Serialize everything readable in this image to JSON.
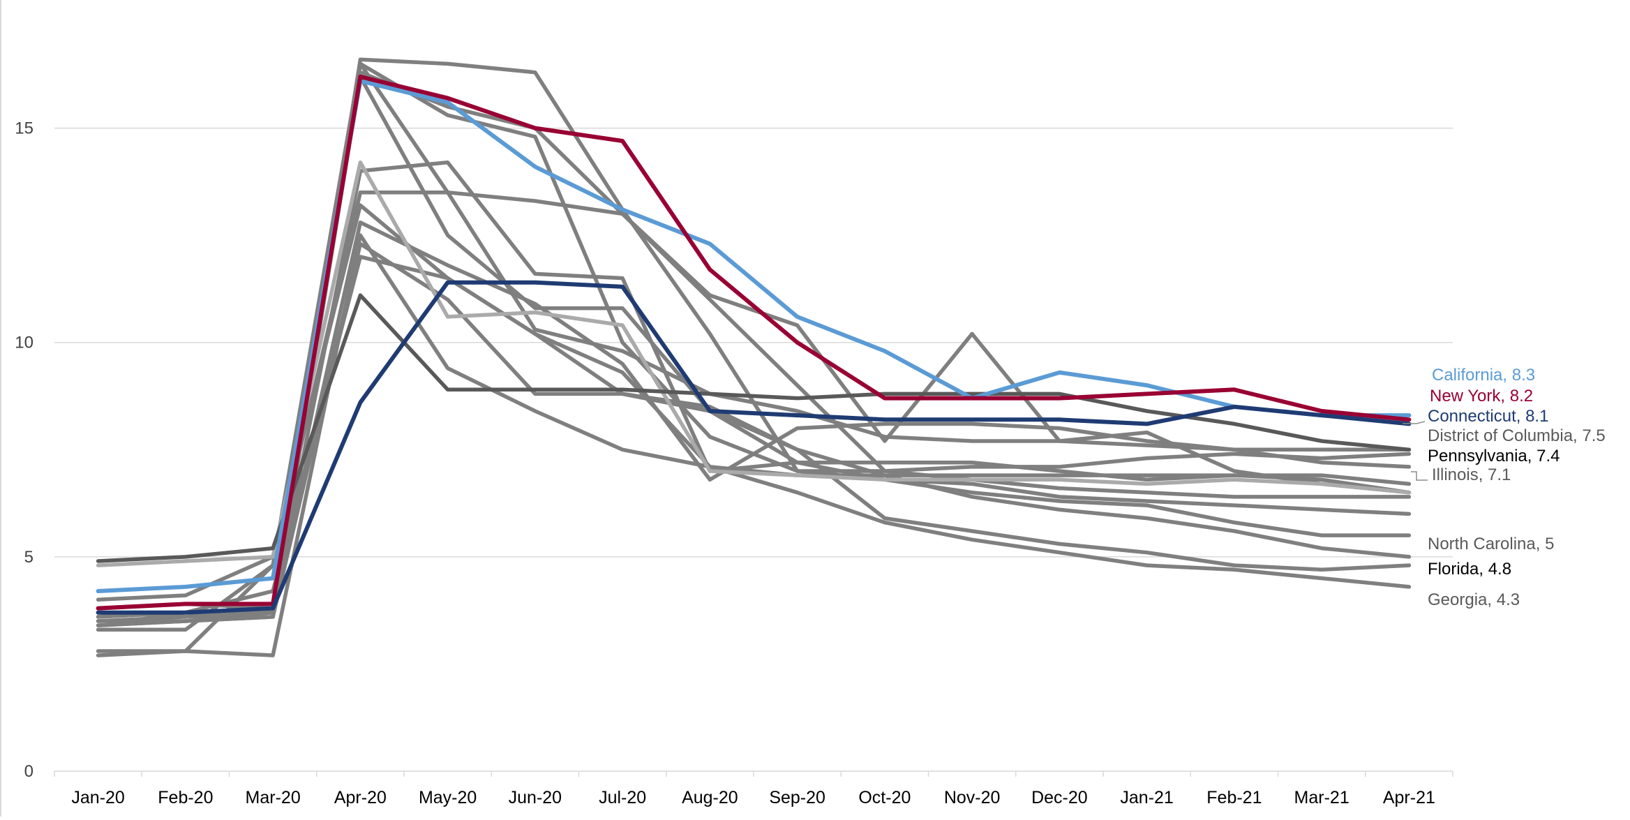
{
  "chart_data": {
    "type": "line",
    "title": "",
    "xlabel": "",
    "ylabel": "",
    "ylim": [
      0,
      17.5
    ],
    "y_ticks": [
      "0",
      "5",
      "10",
      "15"
    ],
    "grid": "horizontal",
    "legend": "none",
    "categories": [
      "Jan-20",
      "Feb-20",
      "Mar-20",
      "Apr-20",
      "May-20",
      "Jun-20",
      "Jul-20",
      "Aug-20",
      "Sep-20",
      "Oct-20",
      "Nov-20",
      "Dec-20",
      "Jan-21",
      "Feb-21",
      "Mar-21",
      "Apr-21"
    ],
    "series": [
      {
        "name": "",
        "label": "",
        "color": "#7f7f7f",
        "values": [
          3.5,
          3.5,
          3.7,
          16.6,
          16.5,
          16.3,
          13.1,
          10.2,
          7.0,
          7.0,
          7.1,
          7.1,
          7.3,
          7.4,
          7.3,
          7.4
        ]
      },
      {
        "name": "",
        "label": "",
        "color": "#7f7f7f",
        "values": [
          3.7,
          3.6,
          3.8,
          16.5,
          15.3,
          14.8,
          10.0,
          7.8,
          7.0,
          6.8,
          6.7,
          6.4,
          6.3,
          6.2,
          6.1,
          6.0
        ]
      },
      {
        "name": "",
        "label": "",
        "color": "#7f7f7f",
        "values": [
          3.3,
          3.3,
          4.8,
          16.5,
          13.5,
          10.3,
          9.8,
          8.8,
          8.4,
          7.8,
          7.7,
          7.7,
          7.6,
          7.5,
          7.2,
          7.1
        ]
      },
      {
        "name": "",
        "label": "",
        "color": "#7f7f7f",
        "values": [
          3.6,
          3.7,
          3.7,
          16.3,
          15.5,
          15.0,
          13.0,
          11.0,
          9.0,
          7.0,
          6.8,
          6.6,
          6.5,
          6.4,
          6.4,
          6.4
        ]
      },
      {
        "name": "",
        "label": "",
        "color": "#7f7f7f",
        "values": [
          3.4,
          3.5,
          3.6,
          16.2,
          12.5,
          10.8,
          10.8,
          8.4,
          7.2,
          6.8,
          6.5,
          6.3,
          6.2,
          5.8,
          5.5,
          5.5
        ]
      },
      {
        "name": "",
        "label": "",
        "color": "#7f7f7f",
        "values": [
          3.8,
          3.9,
          3.8,
          14.0,
          14.2,
          11.6,
          11.5,
          7.0,
          7.2,
          7.2,
          7.2,
          7.0,
          6.8,
          6.9,
          6.8,
          6.5
        ]
      },
      {
        "name": "",
        "label": "",
        "color": "#7f7f7f",
        "values": [
          2.8,
          2.8,
          4.8,
          13.5,
          13.5,
          13.3,
          13.0,
          11.1,
          10.4,
          7.7,
          10.2,
          7.7,
          7.9,
          7.0,
          6.7,
          6.5
        ]
      },
      {
        "name": "",
        "label": "",
        "color": "#7f7f7f",
        "values": [
          4.0,
          4.1,
          5.0,
          13.2,
          11.5,
          10.2,
          9.3,
          7.1,
          6.9,
          6.9,
          6.9,
          6.9,
          6.9,
          6.9,
          6.9,
          6.7
        ]
      },
      {
        "name": "",
        "label": "",
        "color": "#7f7f7f",
        "values": [
          3.5,
          3.6,
          3.7,
          12.8,
          11.8,
          10.9,
          9.5,
          6.8,
          8.0,
          8.1,
          8.1,
          8.0,
          7.7,
          7.5,
          7.5,
          7.5
        ]
      },
      {
        "name": "",
        "label": "",
        "color": "#7f7f7f",
        "values": [
          3.6,
          3.7,
          4.2,
          12.0,
          11.5,
          10.2,
          8.8,
          8.5,
          7.5,
          6.9,
          6.4,
          6.1,
          5.9,
          5.6,
          5.2,
          5.0
        ]
      },
      {
        "name": "",
        "label": "",
        "color": "#7f7f7f",
        "values": [
          2.7,
          2.8,
          2.7,
          12.5,
          9.4,
          8.4,
          7.5,
          7.1,
          6.5,
          5.8,
          5.4,
          5.1,
          4.8,
          4.7,
          4.5,
          4.3
        ]
      },
      {
        "name": "",
        "label": "",
        "color": "#7f7f7f",
        "values": [
          3.4,
          3.5,
          3.6,
          12.3,
          11.0,
          8.8,
          8.8,
          8.4,
          7.5,
          5.9,
          5.6,
          5.3,
          5.1,
          4.8,
          4.7,
          4.8
        ]
      },
      {
        "name": "",
        "label": "",
        "color": "#aaaaaa",
        "values": [
          4.8,
          4.9,
          5.0,
          14.2,
          10.6,
          10.7,
          10.4,
          7.0,
          6.9,
          6.8,
          6.8,
          6.8,
          6.7,
          6.8,
          6.7,
          6.5
        ]
      },
      {
        "name": "",
        "label": "",
        "color": "#595959",
        "values": [
          4.9,
          5.0,
          5.2,
          11.1,
          8.9,
          8.9,
          8.9,
          8.8,
          8.7,
          8.8,
          8.8,
          8.8,
          8.4,
          8.1,
          7.7,
          7.5
        ]
      },
      {
        "name": "",
        "label": "",
        "color": "#5b9bd5",
        "values": [
          4.2,
          4.3,
          4.5,
          16.1,
          15.6,
          14.1,
          13.1,
          12.3,
          10.6,
          9.8,
          8.7,
          9.3,
          9.0,
          8.5,
          8.3,
          8.3
        ]
      },
      {
        "name": "",
        "label": "",
        "color": "#990033",
        "values": [
          3.8,
          3.9,
          3.9,
          16.2,
          15.7,
          15.0,
          14.7,
          11.7,
          10.0,
          8.7,
          8.7,
          8.7,
          8.8,
          8.9,
          8.4,
          8.2
        ]
      },
      {
        "name": "",
        "label": "",
        "color": "#1f3b73",
        "values": [
          3.7,
          3.7,
          3.8,
          8.6,
          11.4,
          11.4,
          11.3,
          8.4,
          8.3,
          8.2,
          8.2,
          8.2,
          8.1,
          8.5,
          8.3,
          8.1
        ]
      }
    ],
    "end_labels": [
      {
        "text": "California, 8.3",
        "color": "#5b9bd5",
        "value": 8.3
      },
      {
        "text": "New York, 8.2",
        "color": "#990033",
        "value": 8.2
      },
      {
        "text": "Connecticut, 8.1",
        "color": "#1f3b73",
        "value": 8.1
      },
      {
        "text": "District of Columbia, 7.5",
        "color": "#595959",
        "value": 7.5
      },
      {
        "text": "Pennsylvania, 7.4",
        "color": "#000000",
        "value": 7.4
      },
      {
        "text": "Illinois, 7.1",
        "color": "#595959",
        "value": 7.1
      },
      {
        "text": "North Carolina, 5",
        "color": "#595959",
        "value": 5.0
      },
      {
        "text": "Florida, 4.8",
        "color": "#000000",
        "value": 4.8
      },
      {
        "text": "Georgia, 4.3",
        "color": "#595959",
        "value": 4.3
      }
    ]
  }
}
